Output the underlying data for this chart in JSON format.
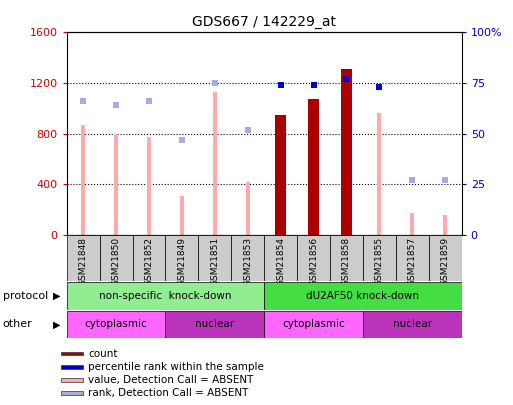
{
  "title": "GDS667 / 142229_at",
  "samples": [
    "GSM21848",
    "GSM21850",
    "GSM21852",
    "GSM21849",
    "GSM21851",
    "GSM21853",
    "GSM21854",
    "GSM21856",
    "GSM21858",
    "GSM21855",
    "GSM21857",
    "GSM21859"
  ],
  "count_values": [
    null,
    null,
    null,
    null,
    null,
    null,
    950,
    1070,
    1310,
    null,
    null,
    null
  ],
  "count_absent_values": [
    870,
    800,
    775,
    310,
    1130,
    420,
    null,
    null,
    null,
    960,
    175,
    155
  ],
  "rank_present_percent": [
    null,
    null,
    null,
    null,
    null,
    null,
    74,
    74,
    77,
    73,
    null,
    null
  ],
  "rank_absent_percent": [
    66,
    64,
    66,
    47,
    75,
    52,
    null,
    null,
    null,
    null,
    27,
    27
  ],
  "ylim_left": [
    0,
    1600
  ],
  "left_ticks": [
    0,
    400,
    800,
    1200,
    1600
  ],
  "left_tick_labels": [
    "0",
    "400",
    "800",
    "1200",
    "1600"
  ],
  "right_ticks": [
    0,
    25,
    50,
    75,
    100
  ],
  "right_tick_labels": [
    "0",
    "25",
    "50",
    "75",
    "100%"
  ],
  "protocol_groups": [
    {
      "label": "non-specific  knock-down",
      "start": 0,
      "end": 6,
      "color": "#90EE90"
    },
    {
      "label": "dU2AF50 knock-down",
      "start": 6,
      "end": 12,
      "color": "#44DD44"
    }
  ],
  "other_groups": [
    {
      "label": "cytoplasmic",
      "start": 0,
      "end": 3,
      "color": "#FF66FF"
    },
    {
      "label": "nuclear",
      "start": 3,
      "end": 6,
      "color": "#BB33BB"
    },
    {
      "label": "cytoplasmic",
      "start": 6,
      "end": 9,
      "color": "#FF66FF"
    },
    {
      "label": "nuclear",
      "start": 9,
      "end": 12,
      "color": "#BB33BB"
    }
  ],
  "count_color": "#AA0000",
  "count_absent_color": "#FFAAAA",
  "rank_present_color": "#0000CC",
  "rank_absent_color": "#AAAADD",
  "left_label_color": "#CC0000",
  "right_label_color": "#0000BB",
  "legend_items": [
    {
      "label": "count",
      "color": "#AA0000"
    },
    {
      "label": "percentile rank within the sample",
      "color": "#0000CC"
    },
    {
      "label": "value, Detection Call = ABSENT",
      "color": "#FFAAAA"
    },
    {
      "label": "rank, Detection Call = ABSENT",
      "color": "#AAAADD"
    }
  ],
  "protocol_label": "protocol",
  "other_label": "other",
  "thin_bar_width": 0.12,
  "thick_bar_width": 0.35,
  "marker_size": 5
}
